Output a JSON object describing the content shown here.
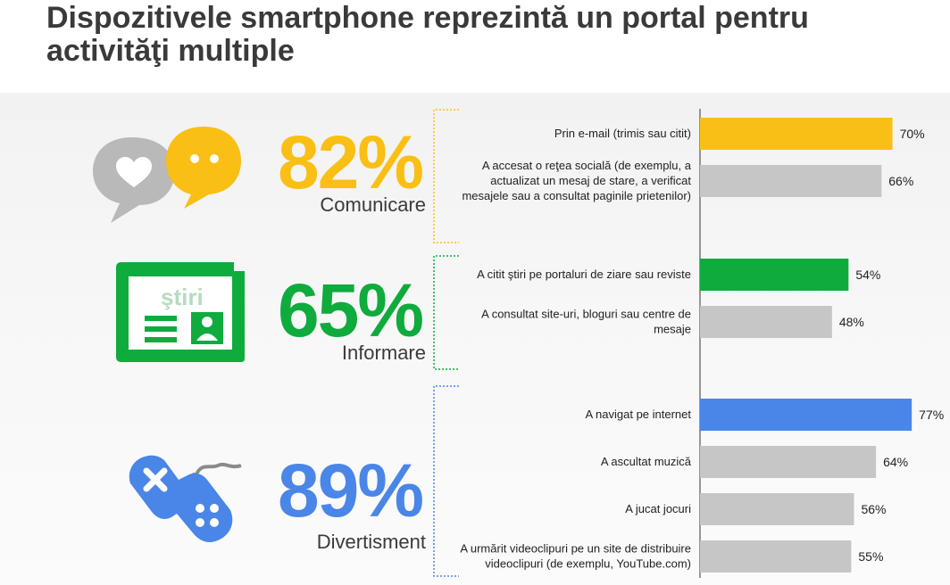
{
  "title": "Dispozitivele smartphone reprezintă un portal pentru activităţi multiple",
  "colors": {
    "comunicare": "#f9bf14",
    "informare": "#0fab3d",
    "divertisment": "#4a86e8",
    "neutral": "#c6c6c6",
    "text": "#3a3a3a"
  },
  "groups": [
    {
      "percent": "82%",
      "label": "Comunicare",
      "icon": "chat-bubbles-icon"
    },
    {
      "percent": "65%",
      "label": "Informare",
      "icon": "news-icon",
      "icon_text": "ştiri"
    },
    {
      "percent": "89%",
      "label": "Divertisment",
      "icon": "gamepad-icon"
    }
  ],
  "chart_data": {
    "type": "bar",
    "orientation": "horizontal",
    "categories": [
      "Prin e-mail (trimis sau citit)",
      "A accesat o reţea socială (de exemplu, a actualizat un mesaj de stare, a verificat mesajele sau a consultat paginile prietenilor)",
      "A citit ştiri pe portaluri de ziare sau reviste",
      "A consultat site-uri, bloguri sau centre de mesaje",
      "A navigat pe internet",
      "A ascultat muzică",
      "A jucat jocuri",
      "A urmărit videoclipuri pe un site de distribuire videoclipuri (de exemplu, YouTube.com)"
    ],
    "category_lines": [
      [
        "Prin e-mail (trimis sau citit)"
      ],
      [
        "A accesat o reţea socială (de exemplu, a",
        "actualizat un mesaj de stare, a verificat",
        "mesajele sau a consultat paginile prietenilor)"
      ],
      [
        "A citit ştiri pe portaluri de ziare sau reviste"
      ],
      [
        "A consultat site-uri, bloguri sau centre de",
        "mesaje"
      ],
      [
        "A navigat pe internet"
      ],
      [
        "A ascultat muzică"
      ],
      [
        "A jucat jocuri"
      ],
      [
        "A urmărit videoclipuri pe un site de distribuire",
        "videoclipuri (de exemplu, YouTube.com)"
      ]
    ],
    "values": [
      70,
      66,
      54,
      48,
      77,
      64,
      56,
      55
    ],
    "value_labels": [
      "70%",
      "66%",
      "54%",
      "48%",
      "77%",
      "64%",
      "56%",
      "55%"
    ],
    "group_of_bar": [
      0,
      0,
      1,
      1,
      2,
      2,
      2,
      2
    ],
    "highlighted": [
      true,
      false,
      true,
      false,
      true,
      false,
      false,
      false
    ],
    "xlim": [
      0,
      100
    ],
    "grid": false,
    "legend": "none"
  }
}
